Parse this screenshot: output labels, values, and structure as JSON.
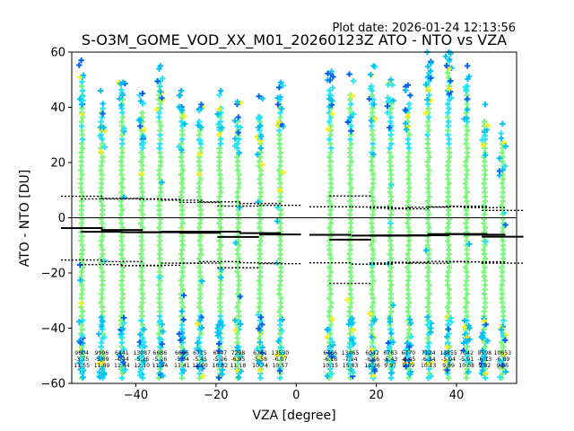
{
  "chart_data": {
    "type": "scatter",
    "plot_date": "Plot date: 2026-01-24 12:13:56",
    "title": "S-O3M_GOME_VOD_XX_M01_20260123Z ATO - NTO vs VZA",
    "xlabel": "VZA [degree]",
    "ylabel": "ATO - NTO [DU]",
    "xlim": [
      -56,
      55
    ],
    "ylim": [
      -60,
      60
    ],
    "xticks": [
      -40,
      -20,
      0,
      20,
      40
    ],
    "yticks": [
      -60,
      -40,
      -20,
      0,
      20,
      40,
      60
    ],
    "zero_line": 0,
    "grid": false,
    "bins": [
      {
        "vza": -53.5,
        "n": "9604",
        "mean": "-3.75",
        "std": "11.55",
        "mean_val": -3.75,
        "std_val": 11.55,
        "top": 57,
        "bottom": -58
      },
      {
        "vza": -48.5,
        "n": "9996",
        "mean": "-5.09",
        "std": "11.89",
        "mean_val": -5.09,
        "std_val": 11.89,
        "top": 46,
        "bottom": -58
      },
      {
        "vza": -43.5,
        "n": "6441",
        "mean": "-4.44",
        "std": "11.44",
        "mean_val": -4.44,
        "std_val": 11.44,
        "top": 49,
        "bottom": -58
      },
      {
        "vza": -38.5,
        "n": "13087",
        "mean": "-5.26",
        "std": "12.10",
        "mean_val": -5.26,
        "std_val": 12.1,
        "top": 45,
        "bottom": -58
      },
      {
        "vza": -34.0,
        "n": "6686",
        "mean": "-5.26",
        "std": "11.94",
        "mean_val": -5.26,
        "std_val": 11.94,
        "top": 55,
        "bottom": -58
      },
      {
        "vza": -28.5,
        "n": "6696",
        "mean": "-5.04",
        "std": "11.41",
        "mean_val": -5.04,
        "std_val": 11.41,
        "top": 46,
        "bottom": -58
      },
      {
        "vza": -24.0,
        "n": "6715",
        "mean": "-5.45",
        "std": "11.00",
        "mean_val": -5.45,
        "std_val": 11.0,
        "top": 41,
        "bottom": -58
      },
      {
        "vza": -19.0,
        "n": "6447",
        "mean": "-5.06",
        "std": "10.82",
        "mean_val": -5.06,
        "std_val": 10.82,
        "top": 46,
        "bottom": -58
      },
      {
        "vza": -14.5,
        "n": "7298",
        "mean": "-6.95",
        "std": "11.18",
        "mean_val": -6.95,
        "std_val": 11.18,
        "top": 42,
        "bottom": -58
      },
      {
        "vza": -9.0,
        "n": "6761",
        "mean": "-5.58",
        "std": "10.74",
        "mean_val": -5.58,
        "std_val": 10.74,
        "top": 44,
        "bottom": -58
      },
      {
        "vza": -4.0,
        "n": "13530",
        "mean": "-6.07",
        "std": "10.57",
        "mean_val": -6.07,
        "std_val": 10.57,
        "top": 49,
        "bottom": -58
      },
      {
        "vza": 8.5,
        "n": "6766",
        "mean": "-6.18",
        "std": "10.15",
        "mean_val": -6.18,
        "std_val": 10.15,
        "top": 53,
        "bottom": -58
      },
      {
        "vza": 13.5,
        "n": "13465",
        "mean": "-7.94",
        "std": "15.83",
        "mean_val": -7.94,
        "std_val": 15.83,
        "top": 52,
        "bottom": -58
      },
      {
        "vza": 19.0,
        "n": "6042",
        "mean": "-6.46",
        "std": "10.36",
        "mean_val": -6.46,
        "std_val": 10.36,
        "top": 55,
        "bottom": -58
      },
      {
        "vza": 23.5,
        "n": "6763",
        "mean": "-6.43",
        "std": "9.97",
        "mean_val": -6.43,
        "std_val": 9.97,
        "top": 50,
        "bottom": -58
      },
      {
        "vza": 28.0,
        "n": "6770",
        "mean": "-6.45",
        "std": "9.69",
        "mean_val": -6.45,
        "std_val": 9.69,
        "top": 48,
        "bottom": -58
      },
      {
        "vza": 33.0,
        "n": "7124",
        "mean": "-6.34",
        "std": "10.13",
        "mean_val": -6.34,
        "std_val": 10.13,
        "top": 60,
        "bottom": -58
      },
      {
        "vza": 38.0,
        "n": "13855",
        "mean": "-5.94",
        "std": "9.89",
        "mean_val": -5.94,
        "std_val": 9.89,
        "top": 60,
        "bottom": -58
      },
      {
        "vza": 42.5,
        "n": "7042",
        "mean": "-5.91",
        "std": "10.08",
        "mean_val": -5.91,
        "std_val": 10.08,
        "top": 55,
        "bottom": -58
      },
      {
        "vza": 47.0,
        "n": "9598",
        "mean": "-6.13",
        "std": "9.82",
        "mean_val": -6.13,
        "std_val": 9.82,
        "top": 41,
        "bottom": -58
      },
      {
        "vza": 51.5,
        "n": "10653",
        "mean": "-6.89",
        "std": "9.55",
        "mean_val": -6.89,
        "std_val": 9.55,
        "top": 34,
        "bottom": -58
      }
    ],
    "colors": {
      "dense": "#7cf67c",
      "medium": "#27e4f4",
      "cyan": "#00c0f8",
      "blue": "#0060f0",
      "yellow": "#f8ee18",
      "mean_line": "#000000"
    }
  }
}
